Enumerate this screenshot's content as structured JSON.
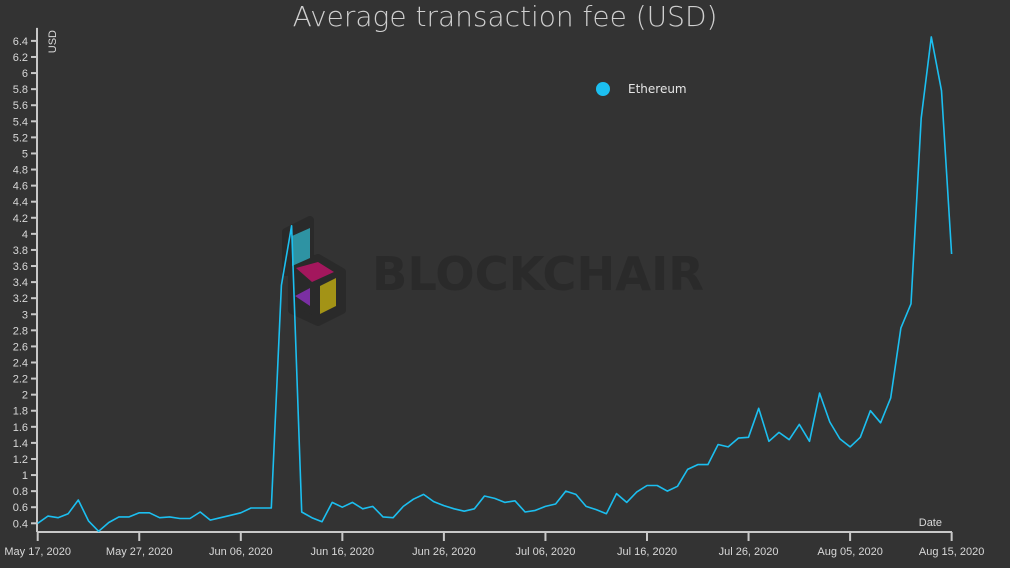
{
  "chart_data": {
    "type": "line",
    "title": "Average transaction fee (USD)",
    "xlabel": "Date",
    "ylabel": "USD",
    "start_date": "2020-05-17",
    "x_tick_labels": [
      "May 17, 2020",
      "May 27, 2020",
      "Jun 06, 2020",
      "Jun 16, 2020",
      "Jun 26, 2020",
      "Jul 06, 2020",
      "Jul 16, 2020",
      "Jul 26, 2020",
      "Aug 05, 2020",
      "Aug 15, 2020"
    ],
    "y_tick_labels": [
      "0.4",
      "0.6",
      "0.8",
      "1",
      "1.2",
      "1.4",
      "1.6",
      "1.8",
      "2",
      "2.2",
      "2.4",
      "2.6",
      "2.8",
      "3",
      "3.2",
      "3.4",
      "3.6",
      "3.8",
      "4",
      "4.2",
      "4.4",
      "4.6",
      "4.8",
      "5",
      "5.2",
      "5.4",
      "5.6",
      "5.8",
      "6",
      "6.2",
      "6.4"
    ],
    "ylim": [
      0.29,
      6.5
    ],
    "grid": false,
    "legend_position": "top-right",
    "series": [
      {
        "name": "Ethereum",
        "color": "#1cbff0",
        "values": [
          0.4,
          0.49,
          0.47,
          0.52,
          0.69,
          0.43,
          0.3,
          0.41,
          0.48,
          0.48,
          0.53,
          0.53,
          0.47,
          0.48,
          0.46,
          0.46,
          0.54,
          0.44,
          0.47,
          0.5,
          0.53,
          0.59,
          0.59,
          0.59,
          3.36,
          4.1,
          0.54,
          0.47,
          0.42,
          0.66,
          0.6,
          0.66,
          0.58,
          0.61,
          0.48,
          0.47,
          0.61,
          0.7,
          0.76,
          0.67,
          0.62,
          0.58,
          0.55,
          0.58,
          0.74,
          0.71,
          0.66,
          0.68,
          0.54,
          0.56,
          0.61,
          0.64,
          0.8,
          0.76,
          0.61,
          0.57,
          0.52,
          0.77,
          0.66,
          0.79,
          0.87,
          0.87,
          0.8,
          0.86,
          1.07,
          1.13,
          1.13,
          1.38,
          1.35,
          1.46,
          1.47,
          1.83,
          1.42,
          1.53,
          1.44,
          1.63,
          1.42,
          2.02,
          1.66,
          1.45,
          1.35,
          1.47,
          1.8,
          1.65,
          1.96,
          2.83,
          3.13,
          5.44,
          6.45,
          5.78,
          3.75
        ]
      }
    ]
  },
  "watermark": {
    "text": "BLOCKCHAIR"
  }
}
